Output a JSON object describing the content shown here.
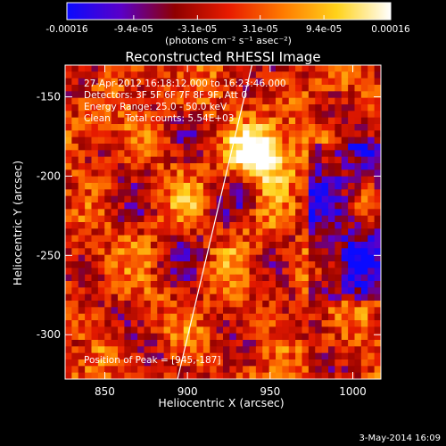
{
  "colorbar": {
    "tick_labels": [
      "-0.00016",
      "-9.4e-05",
      "-3.1e-05",
      "3.1e-05",
      "9.4e-05",
      "0.00016"
    ],
    "tick_values": [
      -0.00016,
      -9.4e-05,
      -3.1e-05,
      3.1e-05,
      9.4e-05,
      0.00016
    ],
    "range": [
      -0.00016,
      0.00016
    ],
    "units_label": "(photons cm⁻² s⁻¹ asec⁻²)",
    "colormap": [
      "#0a0aff",
      "#5a00c8",
      "#8f0000",
      "#e81b00",
      "#ff7a00",
      "#ffd21a",
      "#ffffff"
    ]
  },
  "chart_data": {
    "type": "heatmap",
    "title": "Reconstructed RHESSI Image",
    "xlabel": "Heliocentric X (arcsec)",
    "ylabel": "Heliocentric Y (arcsec)",
    "xlim": [
      826,
      1017
    ],
    "ylim": [
      -328,
      -130
    ],
    "xticks": [
      850,
      900,
      950,
      1000
    ],
    "xtick_labels": [
      "850",
      "900",
      "950",
      "1000"
    ],
    "yticks": [
      -150,
      -200,
      -250,
      -300
    ],
    "ytick_labels": [
      "-150",
      "-200",
      "-250",
      "-300"
    ],
    "info_lines": [
      "27-Apr-2012 16:18:12.000 to 16:23:46.000",
      "Detectors: 3F 5F 6F 7F 8F 9F, Att 0",
      "Energy Range: 25.0 - 50.0 keV",
      "Clean     Total counts: 5.54E+03"
    ],
    "peak_label": "Position of Peak = [945,-187]",
    "peak_position": [
      945,
      -187
    ],
    "limb_line": [
      [
        894,
        -328
      ],
      [
        939,
        -130
      ]
    ],
    "limb_color": "#ffffff"
  },
  "footer": {
    "date": "3-May-2014 16:09"
  }
}
